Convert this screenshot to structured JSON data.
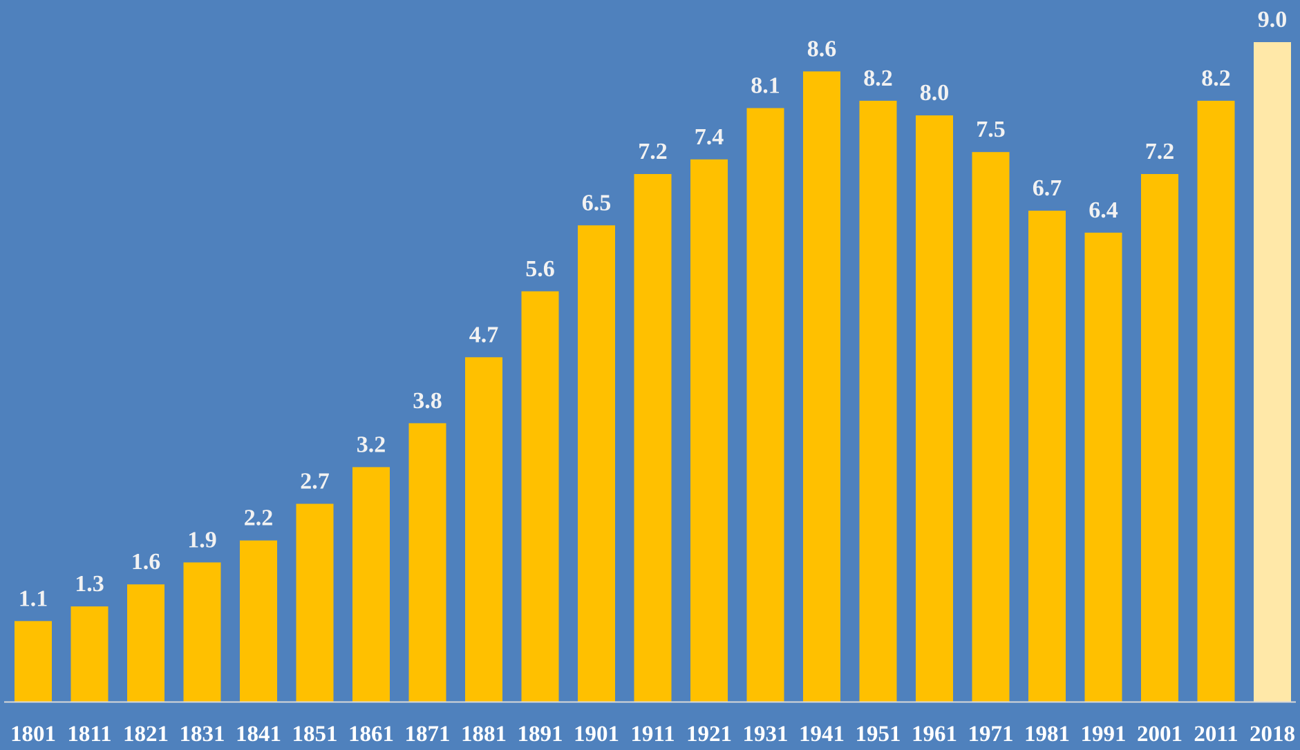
{
  "colors": {
    "background": "#4F81BD",
    "bar": "#FFC000",
    "highlight_bar": "#FFE8A8",
    "axis": "#D9D9D9",
    "label_text": "#F2F2F2",
    "tick_text": "#FFFFFF"
  },
  "chart_data": {
    "type": "bar",
    "title": "",
    "xlabel": "",
    "ylabel": "",
    "grid": false,
    "legend": "none",
    "ylim": [
      0,
      9.0
    ],
    "categories": [
      "1801",
      "1811",
      "1821",
      "1831",
      "1841",
      "1851",
      "1861",
      "1871",
      "1881",
      "1891",
      "1901",
      "1911",
      "1921",
      "1931",
      "1941",
      "1951",
      "1961",
      "1971",
      "1981",
      "1991",
      "2001",
      "2011",
      "2018"
    ],
    "values": [
      1.1,
      1.3,
      1.6,
      1.9,
      2.2,
      2.7,
      3.2,
      3.8,
      4.7,
      5.6,
      6.5,
      7.2,
      7.4,
      8.1,
      8.6,
      8.2,
      8.0,
      7.5,
      6.7,
      6.4,
      7.2,
      8.2,
      9.0
    ],
    "data_labels": [
      "1.1",
      "1.3",
      "1.6",
      "1.9",
      "2.2",
      "2.7",
      "3.2",
      "3.8",
      "4.7",
      "5.6",
      "6.5",
      "7.2",
      "7.4",
      "8.1",
      "8.6",
      "8.2",
      "8.0",
      "7.5",
      "6.7",
      "6.4",
      "7.2",
      "8.2",
      "9.0"
    ],
    "highlight_category": "2018"
  }
}
